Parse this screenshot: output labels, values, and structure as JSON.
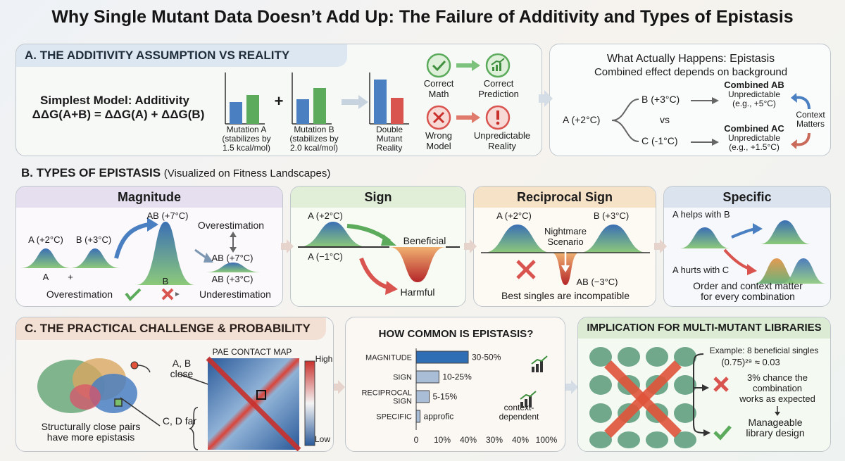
{
  "title": "Why Single Mutant Data Doesn’t Add Up: The Failure of Additivity and Types of Epistasis",
  "panel_a": {
    "header": "A. THE ADDITIVITY ASSUMPTION VS REALITY",
    "model_title": "Simplest Model: Additivity",
    "formula": "ΔΔG(A+B) = ΔΔG(A) + ΔΔG(B)",
    "plus": "+",
    "mut_a": [
      "Mutation A",
      "(stabilizes by",
      "1.5 kcal/mol)"
    ],
    "mut_b": [
      "Mutation B",
      "(stabilizes by",
      "2.0 kcal/mol)"
    ],
    "double": [
      "Double",
      "Mutant",
      "Reality"
    ],
    "correct_math": [
      "Correct",
      "Math"
    ],
    "correct_prediction": [
      "Correct",
      "Prediction"
    ],
    "wrong_model": [
      "Wrong",
      "Model"
    ],
    "unpredictable_reality": [
      "Unpredictable",
      "Reality"
    ]
  },
  "panel_actual": {
    "title": "What Actually Happens: Epistasis",
    "subtitle": "Combined effect depends on background",
    "a_label": "A (+2°C)",
    "b_label": "B (+3°C)",
    "vs": "vs",
    "c_label": "C (-1°C)",
    "ab_title": "Combined AB",
    "ab_lines": [
      "Unpredictable",
      "(e.g., +5°C)"
    ],
    "ac_title": "Combined AC",
    "ac_lines": [
      "Unpredictable",
      "(e.g., +1.5°C)"
    ],
    "context": [
      "Context",
      "Matters"
    ]
  },
  "panel_b": {
    "header": "B. TYPES OF EPISTASIS",
    "header_note": "(Visualized on Fitness Landscapes)",
    "magnitude": {
      "title": "Magnitude",
      "a": "A (+2°C)",
      "b": "B (+3°C)",
      "ab7": "AB (+7°C)",
      "over": "Overestimation",
      "ab7b": "AB (+7°C)",
      "ab3": "AB (+3°C)",
      "x_a": "A",
      "x_plus": "+",
      "x_b": "B",
      "over2": "Overestimation",
      "under": "Underestimation"
    },
    "sign": {
      "title": "Sign",
      "a": "A (+2°C)",
      "a2": "A (−1°C)",
      "beneficial": "Beneficial",
      "harmful": "Harmful"
    },
    "reciprocal": {
      "title": "Reciprocal Sign",
      "a": "A (+2°C)",
      "b": "B (+3°C)",
      "nightmare": [
        "Nightmare",
        "Scenario"
      ],
      "ab": "AB (−3°C)",
      "caption": "Best singles are incompatible"
    },
    "specific": {
      "title": "Specific",
      "helps": "A helps with B",
      "hurts": "A hurts with C",
      "caption": [
        "Order and context matter",
        "for every combination"
      ]
    }
  },
  "panel_c": {
    "header": "C. THE PRACTICAL CHALLENGE & PROBABILITY",
    "map_title": "PAE CONTACT MAP",
    "high": "High",
    "low": "Low",
    "ab_close": [
      "A, B",
      "close"
    ],
    "cd_far": "C, D far",
    "caption": [
      "Structurally close pairs",
      "have more epistasis"
    ]
  },
  "panel_common": {
    "title": "HOW COMMON IS EPISTASIS?",
    "x_ticks": [
      "0",
      "10%",
      "40%",
      "30%",
      "40%",
      "100%"
    ],
    "extra": [
      "context-",
      "dependent"
    ]
  },
  "panel_impl": {
    "title": "IMPLICATION FOR MULTI-MUTANT LIBRARIES",
    "example": "Example: 8 beneficial singles",
    "formula": "(0.75)²⁹ ≈ 0.03",
    "chance": [
      "3% chance the",
      "combination",
      "works as expected"
    ],
    "manageable": [
      "Manageable",
      "library design"
    ]
  },
  "chart_data": {
    "type": "bar",
    "title": "HOW COMMON IS EPISTASIS?",
    "categories": [
      "MAGNITUDE",
      "SIGN",
      "RECIPROCAL SIGN",
      "SPECIFIC"
    ],
    "values": [
      40,
      17.5,
      10,
      3
    ],
    "value_labels": [
      "30-50%",
      "10-25%",
      "5-15%",
      "approfic"
    ],
    "xlim": [
      0,
      100
    ]
  },
  "colors": {
    "blue": "#4a7fc1",
    "green": "#5cab5c",
    "red": "#d9534f",
    "teal": "#3f8f8a",
    "orange": "#e39a52"
  }
}
